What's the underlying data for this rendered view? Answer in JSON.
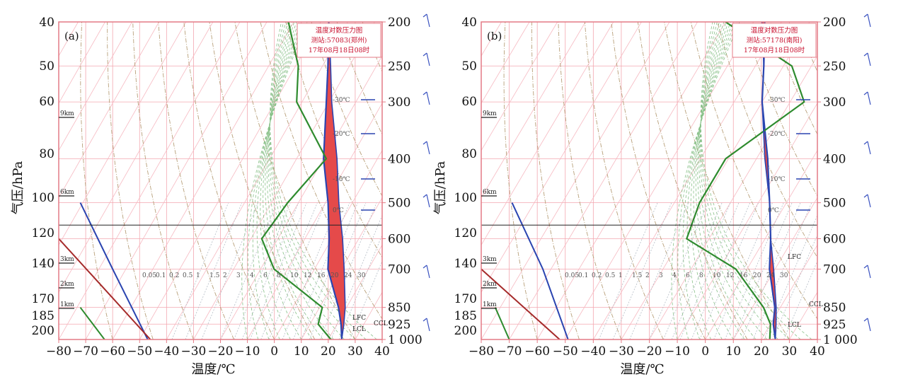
{
  "chart_data": [
    {
      "type": "line",
      "panel_label": "(a)",
      "title": [
        "温度对数压力图",
        "测站:57083(郑州)",
        "17年08月18日08时"
      ],
      "xlabel": "温度/℃",
      "ylabel": "气压/hPa",
      "xlim": [
        -80,
        40
      ],
      "x_ticks": [
        "−80",
        "−70",
        "−60",
        "−50",
        "−40",
        "−30",
        "−20",
        "−10",
        "0",
        "10",
        "20",
        "30",
        "40"
      ],
      "ylim_hPa": [
        200,
        1000
      ],
      "left_ticks": [
        "40",
        "50",
        "60",
        "80",
        "100",
        "120",
        "140",
        "170",
        "185",
        "200"
      ],
      "right_ticks": [
        "200",
        "250",
        "300",
        "400",
        "500",
        "600",
        "700",
        "850",
        "925",
        "1 000"
      ],
      "height_labels": [
        "9km",
        "6km",
        "3km",
        "2km",
        "1km"
      ],
      "isotherm_labels": [
        "-30℃",
        "-20℃",
        "-10℃",
        "0℃"
      ],
      "mixing_ratio_labels": [
        "0.05",
        "0.1",
        "0.2",
        "0.5",
        "1",
        "1.5",
        "2",
        "3",
        "4",
        "6",
        "8",
        "10",
        "12",
        "16",
        "20",
        "24",
        "30"
      ],
      "level_labels": [
        "LFC",
        "CCL",
        "LCL"
      ],
      "series": [
        {
          "name": "T",
          "color": "#2a44b0",
          "p": [
            1000,
            925,
            850,
            700,
            600,
            500,
            400,
            300,
            250,
            200
          ],
          "t": [
            25,
            21.5,
            17,
            5,
            -1,
            -9,
            -20,
            -31,
            -38,
            -47
          ]
        },
        {
          "name": "Td",
          "color": "#2e8b2e",
          "p": [
            1000,
            925,
            850,
            700,
            600,
            500,
            400,
            300,
            250,
            200
          ],
          "t": [
            21,
            13,
            11,
            -15,
            -26,
            -24,
            -19,
            -42,
            -49,
            -62
          ]
        },
        {
          "name": "parcel",
          "color": "#2a44b0",
          "p": [
            1000,
            925,
            850,
            700,
            600,
            500,
            400,
            300,
            250,
            200
          ],
          "t": [
            25,
            22.5,
            19.5,
            11,
            4,
            -5,
            -15,
            -29,
            -37,
            -47
          ]
        }
      ],
      "cape_fill": "#e54a4a",
      "height_profile": {
        "p": [
          1000,
          700,
          500
        ],
        "t": [
          -47,
          -60,
          -72
        ]
      },
      "moist_profile": {
        "p": [
          1000,
          850
        ],
        "t": [
          -63,
          -72
        ]
      },
      "dry_profile": {
        "p": [
          1000,
          600
        ],
        "t": [
          -46,
          -80
        ]
      }
    },
    {
      "type": "line",
      "panel_label": "(b)",
      "title": [
        "温度对数压力图",
        "测站:57178(南阳)",
        "17年08月18日08时"
      ],
      "xlabel": "温度/℃",
      "ylabel": "气压/hPa",
      "xlim": [
        -80,
        40
      ],
      "x_ticks": [
        "−80",
        "−70",
        "−60",
        "−50",
        "−40",
        "−30",
        "−20",
        "−10",
        "0",
        "10",
        "20",
        "30",
        "40"
      ],
      "ylim_hPa": [
        200,
        1000
      ],
      "left_ticks": [
        "40",
        "50",
        "60",
        "80",
        "100",
        "120",
        "140",
        "170",
        "185",
        "200"
      ],
      "right_ticks": [
        "200",
        "250",
        "300",
        "400",
        "500",
        "600",
        "700",
        "850",
        "925",
        "1 000"
      ],
      "height_labels": [
        "9km",
        "6km",
        "3km",
        "2km",
        "1km"
      ],
      "isotherm_labels": [
        "-30℃",
        "-20℃",
        "-10℃",
        "0℃"
      ],
      "mixing_ratio_labels": [
        "0.05",
        "0.1",
        "0.2",
        "0.5",
        "1",
        "1.5",
        "2",
        "3",
        "4",
        "6",
        "8",
        "10",
        "12",
        "16",
        "20",
        "24",
        "30"
      ],
      "level_labels": [
        "LFC",
        "CCL",
        "LCL"
      ],
      "series": [
        {
          "name": "T",
          "color": "#2a44b0",
          "p": [
            1000,
            925,
            850,
            700,
            600,
            500,
            400,
            300,
            250,
            200
          ],
          "t": [
            25,
            21,
            18,
            8,
            2,
            -6,
            -16,
            -30,
            -37,
            -46
          ]
        },
        {
          "name": "Td",
          "color": "#2e8b2e",
          "p": [
            1000,
            925,
            850,
            700,
            600,
            500,
            400,
            300,
            250,
            200
          ],
          "t": [
            23,
            20,
            14,
            -4,
            -28,
            -31,
            -31,
            -15,
            -27,
            -60
          ]
        },
        {
          "name": "parcel",
          "color": "#2a44b0",
          "p": [
            1000,
            925,
            850,
            700,
            600,
            500,
            400,
            300,
            250,
            200
          ],
          "t": [
            25,
            22,
            18.5,
            9.5,
            2,
            -6,
            -17,
            -30,
            -37,
            -47
          ]
        }
      ],
      "cape_fill": "#e54a4a",
      "height_profile": {
        "p": [
          1000,
          700,
          500
        ],
        "t": [
          -49,
          -58,
          -69
        ]
      },
      "moist_profile": {
        "p": [
          1000,
          850
        ],
        "t": [
          -70,
          -75
        ]
      },
      "dry_profile": {
        "p": [
          1000,
          700
        ],
        "t": [
          -52,
          -80
        ]
      }
    }
  ]
}
